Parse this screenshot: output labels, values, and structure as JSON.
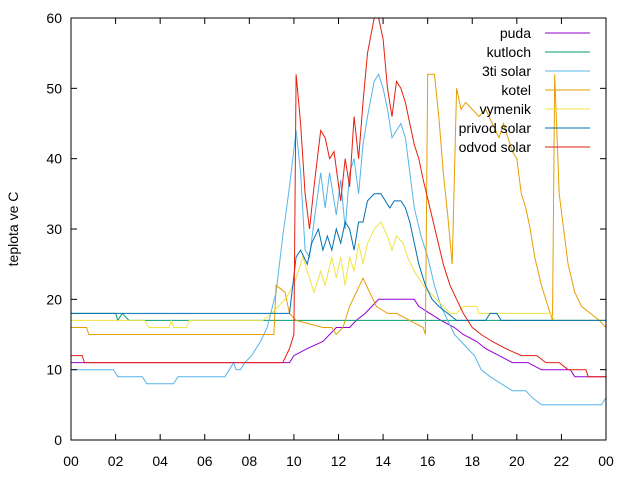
{
  "chart_data": {
    "type": "line",
    "ylabel": "teplota ve C",
    "xlabel": "",
    "ylim": [
      0,
      60
    ],
    "xlim": [
      0,
      24
    ],
    "y_ticks": [
      "0",
      "10",
      "20",
      "30",
      "40",
      "50",
      "60"
    ],
    "x_ticks": [
      "00",
      "02",
      "04",
      "06",
      "08",
      "10",
      "12",
      "14",
      "16",
      "18",
      "20",
      "22",
      "00"
    ],
    "grid": false,
    "legend_position": "top-right",
    "series": [
      {
        "name": "puda",
        "color": "#9400d3",
        "points": [
          [
            0,
            11
          ],
          [
            9.8,
            11
          ],
          [
            10,
            12
          ],
          [
            10.6,
            13
          ],
          [
            11.3,
            14
          ],
          [
            11.9,
            16
          ],
          [
            12.5,
            16
          ],
          [
            12.8,
            17
          ],
          [
            13.2,
            18
          ],
          [
            13.5,
            19
          ],
          [
            13.8,
            20
          ],
          [
            14.5,
            20
          ],
          [
            15.4,
            20
          ],
          [
            15.6,
            19
          ],
          [
            16.1,
            18
          ],
          [
            16.6,
            17
          ],
          [
            17.2,
            16
          ],
          [
            17.6,
            15
          ],
          [
            18.2,
            14
          ],
          [
            18.6,
            13
          ],
          [
            19.2,
            12
          ],
          [
            19.8,
            11
          ],
          [
            20.5,
            11
          ],
          [
            21.1,
            10
          ],
          [
            22.4,
            10
          ],
          [
            22.6,
            9
          ],
          [
            24,
            9
          ]
        ]
      },
      {
        "name": "kutloch",
        "color": "#009e73",
        "points": [
          [
            0,
            18
          ],
          [
            2,
            18
          ],
          [
            2.1,
            17
          ],
          [
            2.3,
            18
          ],
          [
            2.6,
            17
          ],
          [
            24,
            17
          ]
        ]
      },
      {
        "name": "3ti solar",
        "color": "#56b4e9",
        "points": [
          [
            0,
            10
          ],
          [
            1.9,
            10
          ],
          [
            2.1,
            9
          ],
          [
            3.2,
            9
          ],
          [
            3.4,
            8
          ],
          [
            4.6,
            8
          ],
          [
            4.8,
            9
          ],
          [
            6.9,
            9
          ],
          [
            7.1,
            10
          ],
          [
            7.3,
            11
          ],
          [
            7.4,
            10
          ],
          [
            7.6,
            10
          ],
          [
            7.8,
            11
          ],
          [
            8.1,
            12
          ],
          [
            8.5,
            14
          ],
          [
            8.8,
            16
          ],
          [
            9.2,
            21
          ],
          [
            9.5,
            29
          ],
          [
            9.8,
            36
          ],
          [
            10.1,
            44
          ],
          [
            10.3,
            38
          ],
          [
            10.5,
            27
          ],
          [
            10.7,
            26
          ],
          [
            10.9,
            31
          ],
          [
            11.2,
            38
          ],
          [
            11.4,
            33
          ],
          [
            11.6,
            38
          ],
          [
            11.9,
            32
          ],
          [
            12.1,
            37
          ],
          [
            12.3,
            30
          ],
          [
            12.5,
            38
          ],
          [
            12.7,
            40
          ],
          [
            12.9,
            35
          ],
          [
            13.1,
            42
          ],
          [
            13.3,
            46
          ],
          [
            13.6,
            51
          ],
          [
            13.8,
            52
          ],
          [
            14,
            50
          ],
          [
            14.2,
            47
          ],
          [
            14.4,
            43
          ],
          [
            14.6,
            44
          ],
          [
            14.8,
            45
          ],
          [
            15,
            43
          ],
          [
            15.2,
            38
          ],
          [
            15.4,
            33
          ],
          [
            15.7,
            29
          ],
          [
            16,
            26
          ],
          [
            16.3,
            22
          ],
          [
            16.6,
            19
          ],
          [
            16.9,
            17
          ],
          [
            17.2,
            15
          ],
          [
            17.5,
            14
          ],
          [
            17.8,
            13
          ],
          [
            18.1,
            12
          ],
          [
            18.4,
            10
          ],
          [
            18.8,
            9
          ],
          [
            19.3,
            8
          ],
          [
            19.8,
            7
          ],
          [
            20.4,
            7
          ],
          [
            20.7,
            6
          ],
          [
            21.1,
            5
          ],
          [
            23.8,
            5
          ],
          [
            24,
            6
          ]
        ]
      },
      {
        "name": "kotel",
        "color": "#e69f00",
        "points": [
          [
            0,
            16
          ],
          [
            0.7,
            16
          ],
          [
            0.8,
            15
          ],
          [
            9.1,
            15
          ],
          [
            9.2,
            22
          ],
          [
            9.6,
            21
          ],
          [
            9.8,
            18
          ],
          [
            10.1,
            17
          ],
          [
            11.3,
            16
          ],
          [
            11.7,
            16
          ],
          [
            11.9,
            15
          ],
          [
            12.2,
            16
          ],
          [
            12.5,
            19
          ],
          [
            12.8,
            21
          ],
          [
            13.1,
            23
          ],
          [
            13.4,
            21
          ],
          [
            13.7,
            19
          ],
          [
            14.2,
            18
          ],
          [
            14.6,
            18
          ],
          [
            15.2,
            17
          ],
          [
            15.8,
            16
          ],
          [
            15.9,
            15
          ],
          [
            16,
            52
          ],
          [
            16.3,
            52
          ],
          [
            16.5,
            46
          ],
          [
            16.7,
            38
          ],
          [
            16.9,
            32
          ],
          [
            17.1,
            25
          ],
          [
            17.3,
            50
          ],
          [
            17.5,
            47
          ],
          [
            17.7,
            48
          ],
          [
            18,
            47
          ],
          [
            18.3,
            46
          ],
          [
            18.6,
            47
          ],
          [
            18.9,
            45
          ],
          [
            19.2,
            43
          ],
          [
            19.4,
            45
          ],
          [
            19.6,
            43
          ],
          [
            19.8,
            41
          ],
          [
            20,
            40
          ],
          [
            20.2,
            35
          ],
          [
            20.4,
            33
          ],
          [
            20.6,
            30
          ],
          [
            20.8,
            26
          ],
          [
            21.1,
            22
          ],
          [
            21.4,
            19
          ],
          [
            21.6,
            17
          ],
          [
            21.7,
            52
          ],
          [
            21.9,
            35
          ],
          [
            22.1,
            30
          ],
          [
            22.3,
            25
          ],
          [
            22.6,
            21
          ],
          [
            22.9,
            19
          ],
          [
            23.3,
            18
          ],
          [
            23.7,
            17
          ],
          [
            24,
            16
          ]
        ]
      },
      {
        "name": "vymenik",
        "color": "#f0e442",
        "points": [
          [
            0,
            17
          ],
          [
            3.3,
            17
          ],
          [
            3.5,
            16
          ],
          [
            4.4,
            16
          ],
          [
            4.5,
            17
          ],
          [
            4.6,
            16
          ],
          [
            5.2,
            16
          ],
          [
            5.3,
            17
          ],
          [
            8.6,
            17
          ],
          [
            9,
            18
          ],
          [
            9.3,
            19
          ],
          [
            9.6,
            20
          ],
          [
            9.8,
            21
          ],
          [
            10.1,
            23
          ],
          [
            10.4,
            26
          ],
          [
            10.7,
            23
          ],
          [
            10.9,
            21
          ],
          [
            11.2,
            24
          ],
          [
            11.4,
            22
          ],
          [
            11.7,
            26
          ],
          [
            11.9,
            23
          ],
          [
            12.1,
            26
          ],
          [
            12.3,
            22
          ],
          [
            12.5,
            26
          ],
          [
            12.7,
            24
          ],
          [
            12.9,
            28
          ],
          [
            13.1,
            25
          ],
          [
            13.3,
            28
          ],
          [
            13.6,
            30
          ],
          [
            13.9,
            31
          ],
          [
            14.2,
            29
          ],
          [
            14.4,
            27
          ],
          [
            14.6,
            29
          ],
          [
            14.9,
            28
          ],
          [
            15.1,
            26
          ],
          [
            15.4,
            24
          ],
          [
            15.8,
            22
          ],
          [
            16.1,
            21
          ],
          [
            16.4,
            20
          ],
          [
            16.7,
            19
          ],
          [
            17,
            18
          ],
          [
            17.3,
            18
          ],
          [
            17.6,
            19
          ],
          [
            18.2,
            19
          ],
          [
            18.3,
            18
          ],
          [
            21.5,
            18
          ],
          [
            21.7,
            17
          ],
          [
            24,
            17
          ]
        ]
      },
      {
        "name": "privod solar",
        "color": "#0072b2",
        "points": [
          [
            0,
            18
          ],
          [
            9.8,
            18
          ],
          [
            10.1,
            26
          ],
          [
            10.3,
            27
          ],
          [
            10.6,
            25
          ],
          [
            10.8,
            28
          ],
          [
            11.1,
            30
          ],
          [
            11.3,
            27
          ],
          [
            11.5,
            29
          ],
          [
            11.7,
            27
          ],
          [
            11.9,
            30
          ],
          [
            12.1,
            28
          ],
          [
            12.3,
            31
          ],
          [
            12.5,
            30
          ],
          [
            12.7,
            27
          ],
          [
            12.9,
            31
          ],
          [
            13.1,
            31
          ],
          [
            13.3,
            34
          ],
          [
            13.6,
            35
          ],
          [
            13.9,
            35
          ],
          [
            14.1,
            34
          ],
          [
            14.3,
            33
          ],
          [
            14.5,
            34
          ],
          [
            14.8,
            34
          ],
          [
            15,
            33
          ],
          [
            15.2,
            31
          ],
          [
            15.4,
            28
          ],
          [
            15.6,
            25
          ],
          [
            15.9,
            22
          ],
          [
            16.2,
            20
          ],
          [
            16.5,
            19
          ],
          [
            16.9,
            18
          ],
          [
            17.3,
            17
          ],
          [
            18.6,
            17
          ],
          [
            18.8,
            18
          ],
          [
            19.1,
            18
          ],
          [
            19.3,
            17
          ],
          [
            24,
            17
          ]
        ]
      },
      {
        "name": "odvod solar",
        "color": "#e51e10",
        "points": [
          [
            0,
            12
          ],
          [
            0.5,
            12
          ],
          [
            0.6,
            11
          ],
          [
            9.5,
            11
          ],
          [
            9.8,
            13
          ],
          [
            10,
            15
          ],
          [
            10.1,
            52
          ],
          [
            10.3,
            45
          ],
          [
            10.5,
            35
          ],
          [
            10.7,
            30
          ],
          [
            10.9,
            36
          ],
          [
            11.2,
            44
          ],
          [
            11.4,
            43
          ],
          [
            11.6,
            40
          ],
          [
            11.8,
            41
          ],
          [
            12.1,
            34
          ],
          [
            12.3,
            40
          ],
          [
            12.5,
            36
          ],
          [
            12.7,
            46
          ],
          [
            12.9,
            40
          ],
          [
            13.1,
            48
          ],
          [
            13.3,
            55
          ],
          [
            13.6,
            60
          ],
          [
            13.8,
            60
          ],
          [
            14,
            57
          ],
          [
            14.2,
            50
          ],
          [
            14.4,
            46
          ],
          [
            14.6,
            51
          ],
          [
            14.8,
            50
          ],
          [
            15,
            48
          ],
          [
            15.2,
            45
          ],
          [
            15.4,
            42
          ],
          [
            15.6,
            40
          ],
          [
            15.8,
            37
          ],
          [
            16.1,
            33
          ],
          [
            16.4,
            29
          ],
          [
            16.7,
            25
          ],
          [
            17,
            22
          ],
          [
            17.3,
            20
          ],
          [
            17.6,
            18
          ],
          [
            18,
            16
          ],
          [
            18.4,
            15
          ],
          [
            18.9,
            14
          ],
          [
            19.5,
            13
          ],
          [
            20.2,
            12
          ],
          [
            20.9,
            12
          ],
          [
            21.3,
            11
          ],
          [
            21.9,
            11
          ],
          [
            22.3,
            10
          ],
          [
            23.1,
            10
          ],
          [
            23.2,
            9
          ],
          [
            24,
            9
          ]
        ]
      }
    ]
  }
}
